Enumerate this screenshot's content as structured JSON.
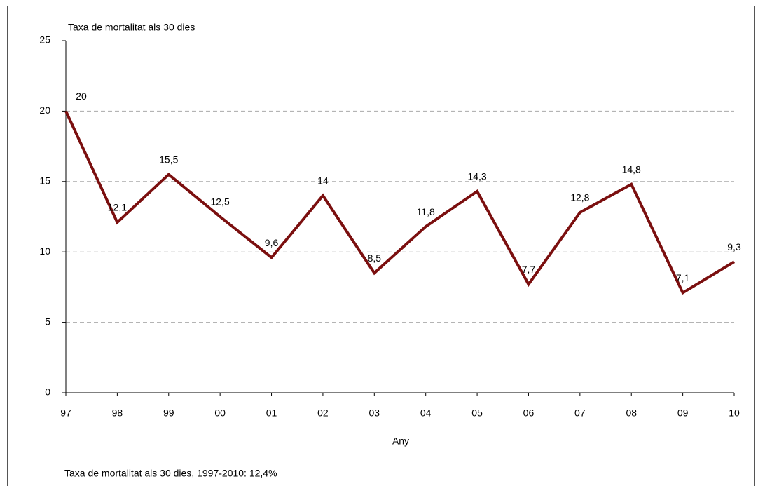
{
  "chart_data": {
    "type": "line",
    "title": "Taxa de mortalitat als 30 dies",
    "x_label": "Any",
    "note": "Taxa de mortalitat als 30 dies, 1997-2010: 12,4%",
    "categories": [
      "97",
      "98",
      "99",
      "00",
      "01",
      "02",
      "03",
      "04",
      "05",
      "06",
      "07",
      "08",
      "09",
      "10"
    ],
    "series": [
      {
        "color": "#7b0f0f",
        "values": [
          20,
          12.1,
          15.5,
          12.5,
          9.6,
          14,
          8.5,
          11.8,
          14.3,
          7.7,
          12.8,
          14.8,
          7.1,
          9.3
        ],
        "value_labels": [
          "20",
          "12,1",
          "15,5",
          "12,5",
          "9,6",
          "14",
          "8,5",
          "11,8",
          "14,3",
          "7,7",
          "12,8",
          "14,8",
          "7,1",
          "9,3"
        ]
      }
    ],
    "ylim": [
      0,
      25
    ],
    "yticks": [
      0,
      5,
      10,
      15,
      20,
      25
    ],
    "grid": true
  }
}
